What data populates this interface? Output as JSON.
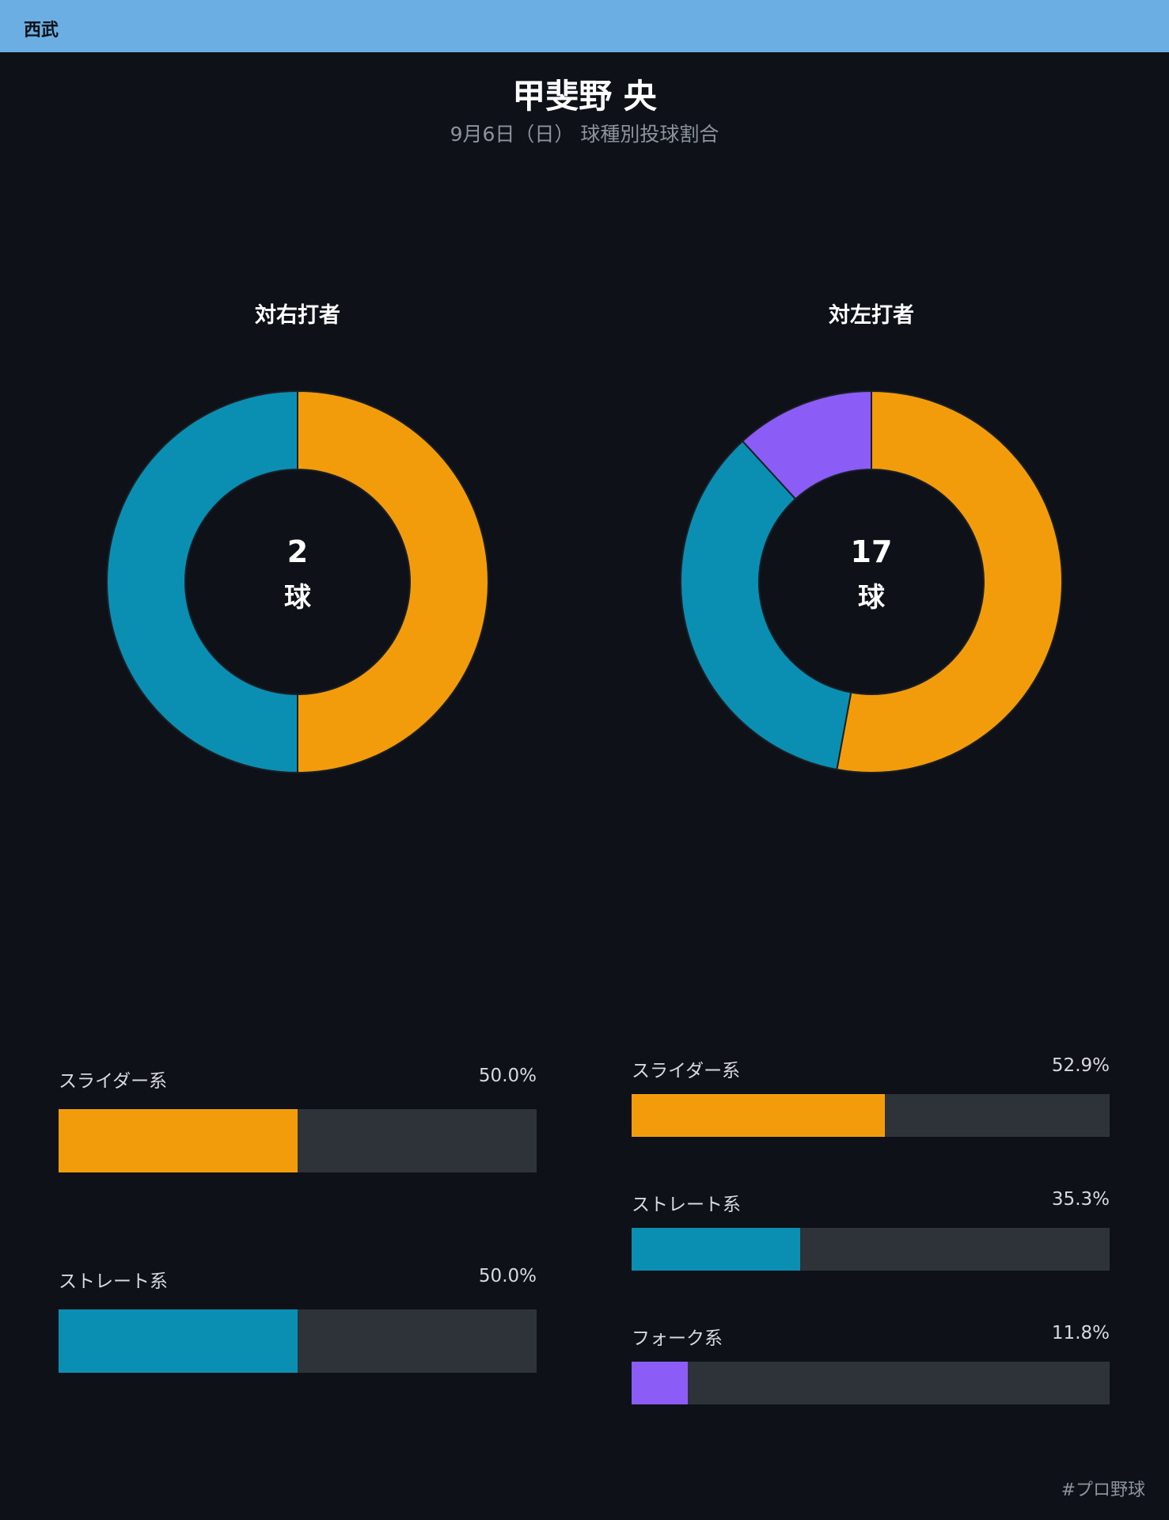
{
  "team": "西武",
  "player_name": "甲斐野 央",
  "subtitle": "9月6日（日） 球種別投球割合",
  "footer_tag": "#プロ野球",
  "colors": {
    "slider": "#f39c0b",
    "straight": "#0a8fb3",
    "fork": "#8b5cf6",
    "track": "#2e333a"
  },
  "chart_data": [
    {
      "type": "pie",
      "title": "対右打者",
      "center_value": "2",
      "center_unit": "球",
      "slices": [
        {
          "label": "スライダー系",
          "value": 50.0,
          "pct_label": "50.0%",
          "color": "#f39c0b"
        },
        {
          "label": "ストレート系",
          "value": 50.0,
          "pct_label": "50.0%",
          "color": "#0a8fb3"
        }
      ]
    },
    {
      "type": "pie",
      "title": "対左打者",
      "center_value": "17",
      "center_unit": "球",
      "slices": [
        {
          "label": "スライダー系",
          "value": 52.9,
          "pct_label": "52.9%",
          "color": "#f39c0b"
        },
        {
          "label": "ストレート系",
          "value": 35.3,
          "pct_label": "35.3%",
          "color": "#0a8fb3"
        },
        {
          "label": "フォーク系",
          "value": 11.8,
          "pct_label": "11.8%",
          "color": "#8b5cf6"
        }
      ]
    }
  ]
}
